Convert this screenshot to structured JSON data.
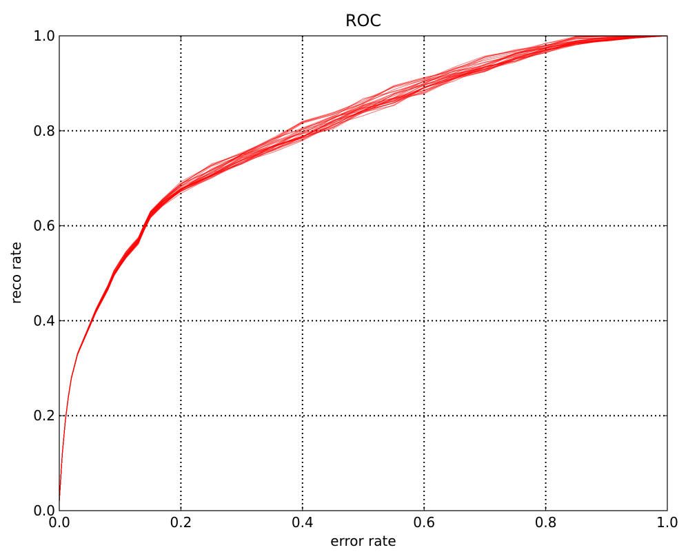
{
  "chart_data": {
    "type": "line",
    "title": "ROC",
    "xlabel": "error rate",
    "ylabel": "reco rate",
    "xlim": [
      0.0,
      1.0
    ],
    "ylim": [
      0.0,
      1.0
    ],
    "xticks": [
      "0.0",
      "0.2",
      "0.4",
      "0.6",
      "0.8",
      "1.0"
    ],
    "yticks": [
      "0.0",
      "0.2",
      "0.4",
      "0.6",
      "0.8",
      "1.0"
    ],
    "grid": true,
    "legend": "none",
    "line_color": "#ff0000",
    "curve_count": 30,
    "series": [
      {
        "x": [
          0.0,
          0.005,
          0.01,
          0.015,
          0.02,
          0.03,
          0.04,
          0.05,
          0.06,
          0.07,
          0.08,
          0.09,
          0.1,
          0.11,
          0.12,
          0.13,
          0.14,
          0.15,
          0.17,
          0.2,
          0.25,
          0.3,
          0.35,
          0.4,
          0.45,
          0.5,
          0.55,
          0.6,
          0.65,
          0.7,
          0.75,
          0.8,
          0.85,
          0.9,
          0.95,
          1.0
        ],
        "y": [
          0.02,
          0.12,
          0.19,
          0.24,
          0.28,
          0.33,
          0.36,
          0.39,
          0.42,
          0.445,
          0.47,
          0.5,
          0.52,
          0.54,
          0.555,
          0.57,
          0.6,
          0.625,
          0.65,
          0.68,
          0.715,
          0.745,
          0.77,
          0.8,
          0.825,
          0.85,
          0.875,
          0.9,
          0.92,
          0.94,
          0.96,
          0.975,
          0.99,
          0.995,
          0.998,
          1.0
        ]
      }
    ]
  }
}
